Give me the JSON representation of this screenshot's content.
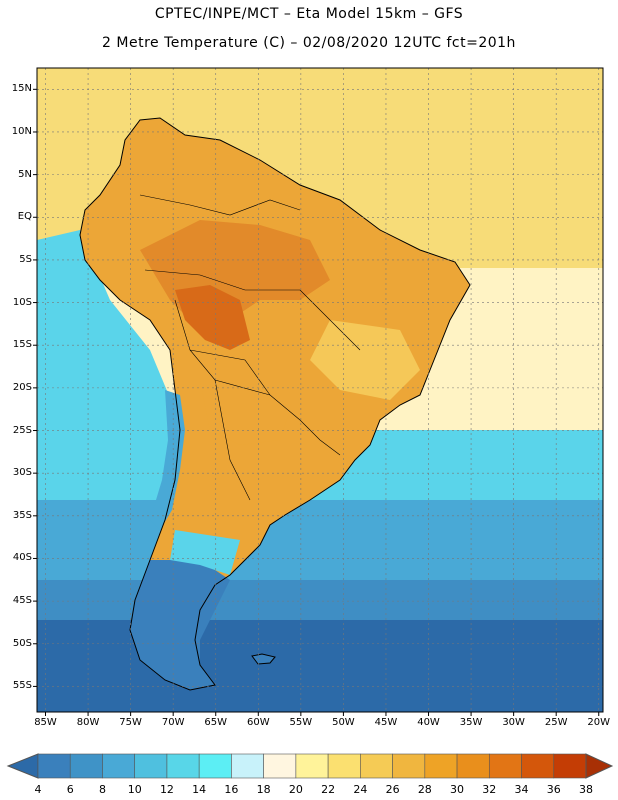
{
  "header": {
    "title_line1": "CPTEC/INPE/MCT –  Eta Model 15km – GFS",
    "title_line2": "2 Metre Temperature (C) – 02/08/2020 12UTC fct=201h"
  },
  "axes": {
    "lat_labels": [
      "15N",
      "10N",
      "5N",
      "EQ",
      "5S",
      "10S",
      "15S",
      "20S",
      "25S",
      "30S",
      "35S",
      "40S",
      "45S",
      "50S",
      "55S"
    ],
    "lat_values": [
      15,
      10,
      5,
      0,
      -5,
      -10,
      -15,
      -20,
      -25,
      -30,
      -35,
      -40,
      -45,
      -50,
      -55
    ],
    "lon_labels": [
      "85W",
      "80W",
      "75W",
      "70W",
      "65W",
      "60W",
      "55W",
      "50W",
      "45W",
      "40W",
      "35W",
      "30W",
      "25W",
      "20W"
    ],
    "lon_values": [
      -85,
      -80,
      -75,
      -70,
      -65,
      -60,
      -55,
      -50,
      -45,
      -40,
      -35,
      -30,
      -25,
      -20
    ],
    "lat_range": [
      -58,
      17.5
    ],
    "lon_range": [
      -86,
      -19.5
    ]
  },
  "colorbar": {
    "labels": [
      "4",
      "6",
      "8",
      "10",
      "12",
      "14",
      "16",
      "18",
      "20",
      "22",
      "24",
      "26",
      "28",
      "30",
      "32",
      "34",
      "36",
      "38"
    ],
    "colors": [
      "#2c6aa8",
      "#3a80bc",
      "#3f93c7",
      "#49a9d6",
      "#4fc0df",
      "#58d6e8",
      "#5ceef4",
      "#c8f2fa",
      "#fff6e0",
      "#fff39a",
      "#fbe070",
      "#f5cb55",
      "#f0b63f",
      "#eea326",
      "#e98f1c",
      "#e27515",
      "#d4570b",
      "#c43d05",
      "#a83005"
    ]
  },
  "map_colors": {
    "ocean_warm": "#f7dc78",
    "ocean_mild": "#fff3c4",
    "ocean_cool": "#5ad4ea",
    "ocean_cold": "#49a9d6",
    "ocean_colder": "#3f8ec4",
    "ocean_coldest": "#2c6aa8",
    "land_hot": "#eca637",
    "land_hotter": "#e28a2a",
    "land_hottest": "#d86a18",
    "andes_cold": "#49a9d6",
    "patagonia": "#3a80bc",
    "patagonia_light": "#5ad4ea",
    "land_warm": "#f5c858"
  }
}
